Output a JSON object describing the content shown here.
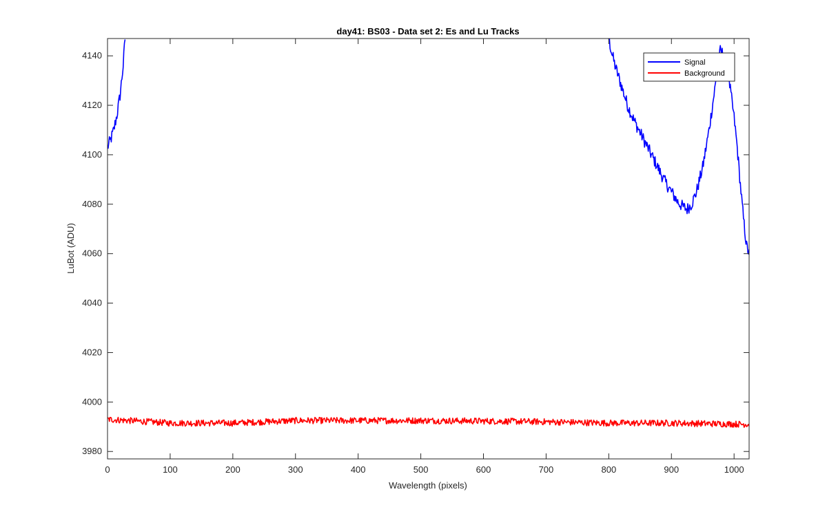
{
  "chart_data": {
    "type": "line",
    "title": "day41: BS03 - Data set 2: Es and Lu Tracks",
    "xlabel": "Wavelength (pixels)",
    "ylabel": "LuBot (ADU)",
    "xlim": [
      0,
      1024
    ],
    "ylim": [
      3977,
      4147
    ],
    "xticks": [
      0,
      100,
      200,
      300,
      400,
      500,
      600,
      700,
      800,
      900,
      1000
    ],
    "yticks": [
      3980,
      4000,
      4020,
      4040,
      4060,
      4080,
      4100,
      4120,
      4140
    ],
    "grid": false,
    "legend": {
      "placement": "top-right",
      "entries": [
        "Signal",
        "Background"
      ]
    },
    "series": [
      {
        "name": "Signal",
        "color": "#0000ff",
        "noise": 2.5,
        "points": [
          [
            0,
            4103
          ],
          [
            5,
            4106
          ],
          [
            10,
            4110
          ],
          [
            15,
            4116
          ],
          [
            20,
            4124
          ],
          [
            25,
            4136
          ],
          [
            28,
            4147
          ],
          [
            null,
            null
          ],
          [
            800,
            4147
          ],
          [
            805,
            4141
          ],
          [
            810,
            4136
          ],
          [
            820,
            4128
          ],
          [
            830,
            4120
          ],
          [
            840,
            4114
          ],
          [
            850,
            4109
          ],
          [
            860,
            4104
          ],
          [
            870,
            4099
          ],
          [
            880,
            4094
          ],
          [
            890,
            4089
          ],
          [
            900,
            4085
          ],
          [
            910,
            4081
          ],
          [
            918,
            4079
          ],
          [
            925,
            4078
          ],
          [
            932,
            4080
          ],
          [
            940,
            4085
          ],
          [
            950,
            4095
          ],
          [
            960,
            4110
          ],
          [
            970,
            4128
          ],
          [
            978,
            4142
          ],
          [
            985,
            4140
          ],
          [
            992,
            4130
          ],
          [
            1000,
            4115
          ],
          [
            1005,
            4103
          ],
          [
            1010,
            4088
          ],
          [
            1015,
            4074
          ],
          [
            1020,
            4063
          ],
          [
            1024,
            4060
          ]
        ]
      },
      {
        "name": "Background",
        "color": "#ff0000",
        "noise": 1.3,
        "points": [
          [
            0,
            3993
          ],
          [
            100,
            3991.5
          ],
          [
            200,
            3991.5
          ],
          [
            300,
            3992.5
          ],
          [
            400,
            3992.5
          ],
          [
            500,
            3992.5
          ],
          [
            600,
            3992.3
          ],
          [
            700,
            3992
          ],
          [
            800,
            3991.5
          ],
          [
            900,
            3991.5
          ],
          [
            1024,
            3991
          ]
        ]
      }
    ]
  }
}
